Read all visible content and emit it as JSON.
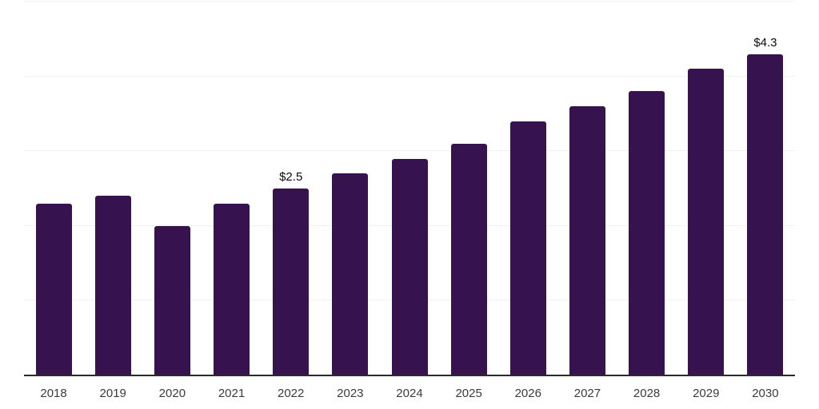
{
  "chart_data": {
    "type": "bar",
    "categories": [
      "2018",
      "2019",
      "2020",
      "2021",
      "2022",
      "2023",
      "2024",
      "2025",
      "2026",
      "2027",
      "2028",
      "2029",
      "2030"
    ],
    "values": [
      2.3,
      2.4,
      2.0,
      2.3,
      2.5,
      2.7,
      2.9,
      3.1,
      3.4,
      3.6,
      3.8,
      4.1,
      4.3
    ],
    "data_labels": [
      {
        "category": "2022",
        "text": "$2.5"
      },
      {
        "category": "2030",
        "text": "$4.3"
      }
    ],
    "ylim": [
      0,
      5
    ],
    "gridline_values": [
      1,
      2,
      3,
      4,
      5
    ],
    "grid": true,
    "legend": false,
    "x_axis_line": true,
    "y_axis_labels": false,
    "colors": {
      "bar": "#36124e",
      "gridline": "#f1f1f1",
      "axis_line": "#2a2a2a",
      "tick_label": "#3b3b3b",
      "data_label": "#0a0a0a",
      "background": "#ffffff"
    }
  }
}
